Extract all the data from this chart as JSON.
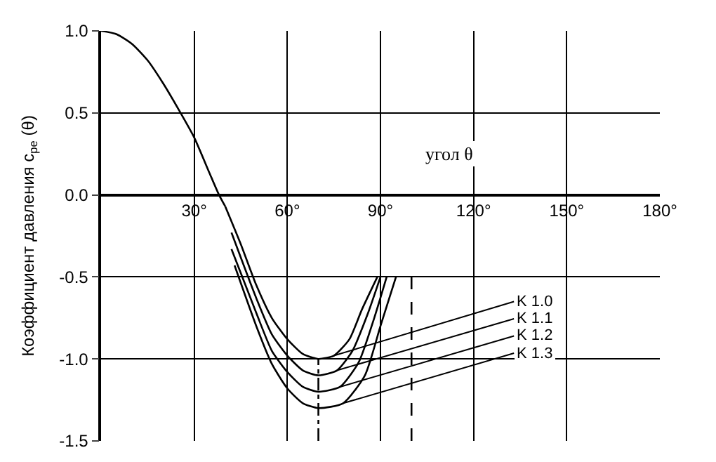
{
  "chart_data": {
    "type": "line",
    "xlabel": "угол θ",
    "ylabel": "Коэффициент давления c$_{pe}$ (θ)",
    "xlim": [
      0,
      180
    ],
    "xticks": [
      {
        "value": 0,
        "label": null
      },
      {
        "value": 30,
        "label": "30°"
      },
      {
        "value": 60,
        "label": "60°"
      },
      {
        "value": 90,
        "label": "90°"
      },
      {
        "value": 120,
        "label": "120°"
      },
      {
        "value": 150,
        "label": "150°"
      },
      {
        "value": 180,
        "label": "180°"
      }
    ],
    "ylim": [
      -1.5,
      1.0
    ],
    "yticks": [
      {
        "value": 1.0,
        "label": "1.0"
      },
      {
        "value": 0.5,
        "label": "0.5"
      },
      {
        "value": 0.0,
        "label": "0.0"
      },
      {
        "value": -0.5,
        "label": "-0.5"
      },
      {
        "value": -1.0,
        "label": "-1.0"
      },
      {
        "value": -1.5,
        "label": "-1.5"
      }
    ],
    "grid": true,
    "legend": false,
    "marker": "none",
    "line_style": "solid",
    "series": [
      {
        "color": "#000000",
        "x": [
          0,
          5,
          10,
          15,
          20,
          25,
          30,
          35,
          38,
          40
        ],
        "values": [
          1.0,
          0.98,
          0.92,
          0.82,
          0.68,
          0.52,
          0.35,
          0.13,
          0.0,
          -0.07
        ]
      },
      {
        "name": "K 1.0",
        "color": "#000000",
        "x": [
          40,
          45,
          50,
          55,
          60,
          65,
          70,
          75,
          80,
          84,
          89
        ],
        "values": [
          -0.07,
          -0.3,
          -0.55,
          -0.75,
          -0.88,
          -0.97,
          -1.0,
          -0.98,
          -0.88,
          -0.7,
          -0.5
        ]
      },
      {
        "name": "K 1.1",
        "color": "#000000",
        "x": [
          42,
          50,
          55,
          60,
          65,
          70,
          76,
          81,
          86,
          90
        ],
        "values": [
          -0.23,
          -0.63,
          -0.85,
          -0.98,
          -1.07,
          -1.1,
          -1.07,
          -0.95,
          -0.72,
          -0.5
        ]
      },
      {
        "name": "K 1.2",
        "color": "#000000",
        "x": [
          42,
          50,
          55,
          60,
          65,
          70,
          77,
          83,
          88,
          92
        ],
        "values": [
          -0.33,
          -0.72,
          -0.95,
          -1.08,
          -1.17,
          -1.2,
          -1.17,
          -1.02,
          -0.75,
          -0.5
        ]
      },
      {
        "name": "K 1.3",
        "color": "#000000",
        "x": [
          43,
          50,
          55,
          60,
          65,
          70,
          78,
          85,
          90,
          95
        ],
        "values": [
          -0.43,
          -0.8,
          -1.03,
          -1.18,
          -1.27,
          -1.3,
          -1.27,
          -1.1,
          -0.8,
          -0.5
        ]
      },
      {
        "color": "#000000",
        "x": [
          70,
          70
        ],
        "values": [
          -1.5,
          -1.0
        ],
        "line_style": "dashdot"
      },
      {
        "color": "#000000",
        "x": [
          100,
          100
        ],
        "values": [
          -1.5,
          -0.5
        ],
        "line_style": "dashed"
      }
    ]
  }
}
